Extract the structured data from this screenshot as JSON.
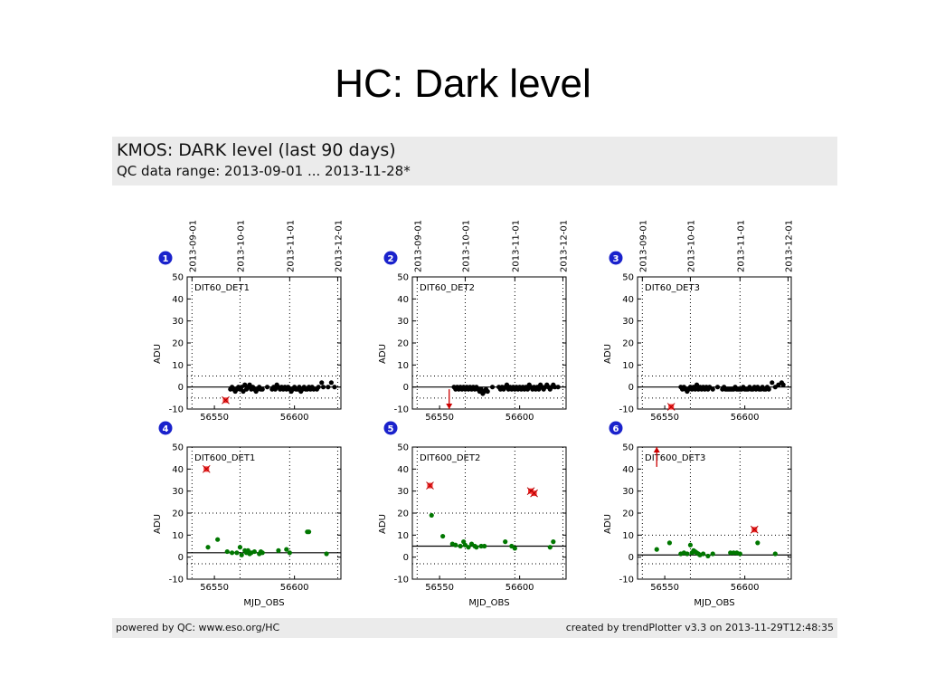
{
  "slide": {
    "title": "HC: Dark level"
  },
  "header": {
    "title": "KMOS: DARK level (last 90 days)",
    "range": "QC data range: 2013-09-01 ... 2013-11-28*"
  },
  "footer": {
    "left": "powered by QC: www.eso.org/HC",
    "right": "created by trendPlotter v3.3 on 2013-11-29T12:48:35"
  },
  "chart_data": [
    {
      "type": "scatter",
      "panel": "1",
      "label": "DIT60_DET1",
      "row": "top",
      "ylabel": "ADU",
      "xlabel": "",
      "xlim": [
        56533,
        56629
      ],
      "ylim": [
        -10,
        50
      ],
      "yticks": [
        -10,
        0,
        10,
        20,
        30,
        40,
        50
      ],
      "xticks": [
        56550,
        56600
      ],
      "date_ticks": [
        {
          "x": 56536,
          "label": "2013-09-01"
        },
        {
          "x": 56566,
          "label": "2013-10-01"
        },
        {
          "x": 56597,
          "label": "2013-11-01"
        },
        {
          "x": 56627,
          "label": "2013-12-01"
        }
      ],
      "ref_line": 0,
      "thresholds": [
        -5,
        5
      ],
      "color": "#000000",
      "points": [
        [
          56560,
          -1
        ],
        [
          56561,
          0
        ],
        [
          56562,
          -1
        ],
        [
          56563,
          -2
        ],
        [
          56564,
          -1
        ],
        [
          56565,
          0
        ],
        [
          56566,
          -1
        ],
        [
          56567,
          0
        ],
        [
          56568,
          -2
        ],
        [
          56569,
          1
        ],
        [
          56570,
          -1
        ],
        [
          56571,
          0
        ],
        [
          56572,
          1
        ],
        [
          56573,
          -1
        ],
        [
          56574,
          0
        ],
        [
          56575,
          -1
        ],
        [
          56576,
          -2
        ],
        [
          56577,
          -1
        ],
        [
          56578,
          0
        ],
        [
          56579,
          -1
        ],
        [
          56580,
          -1
        ],
        [
          56583,
          0
        ],
        [
          56586,
          -1
        ],
        [
          56587,
          0
        ],
        [
          56588,
          -1
        ],
        [
          56589,
          1
        ],
        [
          56590,
          0
        ],
        [
          56591,
          -1
        ],
        [
          56592,
          0
        ],
        [
          56593,
          -1
        ],
        [
          56594,
          0
        ],
        [
          56595,
          -1
        ],
        [
          56596,
          0
        ],
        [
          56597,
          -1
        ],
        [
          56598,
          -2
        ],
        [
          56599,
          -1
        ],
        [
          56600,
          0
        ],
        [
          56601,
          -1
        ],
        [
          56602,
          -1
        ],
        [
          56603,
          0
        ],
        [
          56604,
          -2
        ],
        [
          56605,
          -1
        ],
        [
          56606,
          0
        ],
        [
          56607,
          -1
        ],
        [
          56608,
          -1
        ],
        [
          56609,
          0
        ],
        [
          56610,
          -1
        ],
        [
          56611,
          0
        ],
        [
          56612,
          -1
        ],
        [
          56614,
          -1
        ],
        [
          56615,
          0
        ],
        [
          56617,
          2
        ],
        [
          56618,
          0
        ],
        [
          56621,
          0
        ],
        [
          56623,
          2
        ],
        [
          56625,
          0
        ]
      ],
      "outliers": [
        [
          56557,
          -6
        ]
      ],
      "arrows": []
    },
    {
      "type": "scatter",
      "panel": "2",
      "label": "DIT60_DET2",
      "row": "top",
      "ylabel": "ADU",
      "xlabel": "",
      "xlim": [
        56533,
        56629
      ],
      "ylim": [
        -10,
        50
      ],
      "yticks": [
        -10,
        0,
        10,
        20,
        30,
        40,
        50
      ],
      "xticks": [
        56550,
        56600
      ],
      "date_ticks": [
        {
          "x": 56536,
          "label": "2013-09-01"
        },
        {
          "x": 56566,
          "label": "2013-10-01"
        },
        {
          "x": 56597,
          "label": "2013-11-01"
        },
        {
          "x": 56627,
          "label": "2013-12-01"
        }
      ],
      "ref_line": 0,
      "thresholds": [
        -5,
        5
      ],
      "color": "#000000",
      "points": [
        [
          56559,
          0
        ],
        [
          56560,
          -1
        ],
        [
          56561,
          0
        ],
        [
          56562,
          -1
        ],
        [
          56563,
          0
        ],
        [
          56564,
          -1
        ],
        [
          56565,
          0
        ],
        [
          56566,
          -1
        ],
        [
          56567,
          0
        ],
        [
          56568,
          -1
        ],
        [
          56569,
          0
        ],
        [
          56570,
          -1
        ],
        [
          56571,
          0
        ],
        [
          56572,
          -1
        ],
        [
          56573,
          0
        ],
        [
          56574,
          -1
        ],
        [
          56575,
          -2
        ],
        [
          56576,
          -1
        ],
        [
          56577,
          -3
        ],
        [
          56578,
          -2
        ],
        [
          56579,
          -1
        ],
        [
          56580,
          -2
        ],
        [
          56583,
          0
        ],
        [
          56587,
          0
        ],
        [
          56588,
          -1
        ],
        [
          56589,
          0
        ],
        [
          56590,
          -1
        ],
        [
          56591,
          0
        ],
        [
          56592,
          1
        ],
        [
          56593,
          -1
        ],
        [
          56594,
          0
        ],
        [
          56595,
          -1
        ],
        [
          56596,
          0
        ],
        [
          56597,
          -1
        ],
        [
          56598,
          0
        ],
        [
          56599,
          -1
        ],
        [
          56600,
          0
        ],
        [
          56601,
          -1
        ],
        [
          56602,
          0
        ],
        [
          56603,
          -1
        ],
        [
          56604,
          0
        ],
        [
          56605,
          -1
        ],
        [
          56606,
          1
        ],
        [
          56607,
          0
        ],
        [
          56608,
          -1
        ],
        [
          56609,
          0
        ],
        [
          56610,
          -1
        ],
        [
          56611,
          0
        ],
        [
          56612,
          -1
        ],
        [
          56613,
          1
        ],
        [
          56614,
          0
        ],
        [
          56615,
          -1
        ],
        [
          56616,
          0
        ],
        [
          56617,
          1
        ],
        [
          56618,
          0
        ],
        [
          56619,
          -1
        ],
        [
          56620,
          0
        ],
        [
          56621,
          1
        ],
        [
          56622,
          0
        ],
        [
          56624,
          0
        ]
      ],
      "outliers": [],
      "arrows": [
        {
          "x": 56556,
          "from": -1,
          "to": -10,
          "dir": "down"
        }
      ]
    },
    {
      "type": "scatter",
      "panel": "3",
      "label": "DIT60_DET3",
      "row": "top",
      "ylabel": "ADU",
      "xlabel": "",
      "xlim": [
        56533,
        56629
      ],
      "ylim": [
        -10,
        50
      ],
      "yticks": [
        -10,
        0,
        10,
        20,
        30,
        40,
        50
      ],
      "xticks": [
        56550,
        56600
      ],
      "date_ticks": [
        {
          "x": 56536,
          "label": "2013-09-01"
        },
        {
          "x": 56566,
          "label": "2013-10-01"
        },
        {
          "x": 56597,
          "label": "2013-11-01"
        },
        {
          "x": 56627,
          "label": "2013-12-01"
        }
      ],
      "ref_line": 0,
      "thresholds": [
        -5,
        5
      ],
      "color": "#000000",
      "points": [
        [
          56560,
          0
        ],
        [
          56561,
          -1
        ],
        [
          56562,
          0
        ],
        [
          56563,
          -1
        ],
        [
          56564,
          -2
        ],
        [
          56565,
          -1
        ],
        [
          56566,
          0
        ],
        [
          56567,
          -1
        ],
        [
          56568,
          0
        ],
        [
          56569,
          -1
        ],
        [
          56570,
          1
        ],
        [
          56571,
          -1
        ],
        [
          56572,
          0
        ],
        [
          56573,
          -1
        ],
        [
          56574,
          0
        ],
        [
          56575,
          -1
        ],
        [
          56576,
          0
        ],
        [
          56577,
          -1
        ],
        [
          56578,
          0
        ],
        [
          56580,
          -1
        ],
        [
          56583,
          0
        ],
        [
          56586,
          -1
        ],
        [
          56587,
          0
        ],
        [
          56588,
          -1
        ],
        [
          56589,
          -1
        ],
        [
          56590,
          -1
        ],
        [
          56591,
          -1
        ],
        [
          56592,
          -1
        ],
        [
          56593,
          -1
        ],
        [
          56594,
          0
        ],
        [
          56595,
          -1
        ],
        [
          56596,
          -1
        ],
        [
          56597,
          -1
        ],
        [
          56598,
          -1
        ],
        [
          56599,
          0
        ],
        [
          56600,
          -1
        ],
        [
          56601,
          -1
        ],
        [
          56602,
          -1
        ],
        [
          56603,
          0
        ],
        [
          56604,
          -1
        ],
        [
          56605,
          -1
        ],
        [
          56606,
          0
        ],
        [
          56607,
          -1
        ],
        [
          56608,
          0
        ],
        [
          56609,
          -1
        ],
        [
          56610,
          -1
        ],
        [
          56611,
          0
        ],
        [
          56612,
          -1
        ],
        [
          56613,
          -1
        ],
        [
          56614,
          0
        ],
        [
          56615,
          -1
        ],
        [
          56617,
          2
        ],
        [
          56619,
          0
        ],
        [
          56621,
          1
        ],
        [
          56623,
          2
        ],
        [
          56624,
          1
        ]
      ],
      "outliers": [
        [
          56554,
          -9
        ]
      ],
      "arrows": []
    },
    {
      "type": "scatter",
      "panel": "4",
      "label": "DIT600_DET1",
      "row": "bottom",
      "ylabel": "ADU",
      "xlabel": "MJD_OBS",
      "xlim": [
        56533,
        56629
      ],
      "ylim": [
        -10,
        50
      ],
      "yticks": [
        -10,
        0,
        10,
        20,
        30,
        40,
        50
      ],
      "xticks": [
        56550,
        56600
      ],
      "date_ticks": [
        {
          "x": 56536,
          "label": "2013-09-01"
        },
        {
          "x": 56566,
          "label": "2013-10-01"
        },
        {
          "x": 56597,
          "label": "2013-11-01"
        },
        {
          "x": 56627,
          "label": "2013-12-01"
        }
      ],
      "ref_line": 2,
      "thresholds": [
        -3,
        20
      ],
      "color": "#007700",
      "points": [
        [
          56546,
          4.5
        ],
        [
          56552,
          8
        ],
        [
          56558,
          2.5
        ],
        [
          56561,
          2
        ],
        [
          56564,
          2
        ],
        [
          56566,
          4.5
        ],
        [
          56567,
          1
        ],
        [
          56569,
          3
        ],
        [
          56570,
          2
        ],
        [
          56571,
          3
        ],
        [
          56572,
          1.5
        ],
        [
          56573,
          2
        ],
        [
          56575,
          2.5
        ],
        [
          56578,
          1.5
        ],
        [
          56579,
          2.5
        ],
        [
          56580,
          2
        ],
        [
          56590,
          3
        ],
        [
          56595,
          3.5
        ],
        [
          56597,
          2
        ],
        [
          56608,
          11.5
        ],
        [
          56609,
          11.5
        ],
        [
          56620,
          1.5
        ]
      ],
      "outliers": [
        [
          56545,
          40
        ]
      ],
      "arrows": []
    },
    {
      "type": "scatter",
      "panel": "5",
      "label": "DIT600_DET2",
      "row": "bottom",
      "ylabel": "ADU",
      "xlabel": "MJD_OBS",
      "xlim": [
        56533,
        56629
      ],
      "ylim": [
        -10,
        50
      ],
      "yticks": [
        -10,
        0,
        10,
        20,
        30,
        40,
        50
      ],
      "xticks": [
        56550,
        56600
      ],
      "date_ticks": [
        {
          "x": 56536,
          "label": "2013-09-01"
        },
        {
          "x": 56566,
          "label": "2013-10-01"
        },
        {
          "x": 56597,
          "label": "2013-11-01"
        },
        {
          "x": 56627,
          "label": "2013-12-01"
        }
      ],
      "ref_line": 5,
      "thresholds": [
        -3,
        20
      ],
      "color": "#007700",
      "points": [
        [
          56545,
          19
        ],
        [
          56552,
          9.5
        ],
        [
          56558,
          6
        ],
        [
          56560,
          5.5
        ],
        [
          56563,
          5
        ],
        [
          56565,
          7
        ],
        [
          56566,
          5.5
        ],
        [
          56568,
          4.5
        ],
        [
          56570,
          6
        ],
        [
          56572,
          5
        ],
        [
          56573,
          4.5
        ],
        [
          56576,
          5
        ],
        [
          56578,
          5
        ],
        [
          56591,
          7
        ],
        [
          56595,
          5
        ],
        [
          56597,
          4
        ],
        [
          56619,
          4.5
        ],
        [
          56621,
          7
        ]
      ],
      "outliers": [
        [
          56544,
          32.5
        ],
        [
          56607,
          30
        ],
        [
          56609,
          29
        ]
      ],
      "arrows": []
    },
    {
      "type": "scatter",
      "panel": "6",
      "label": "DIT600_DET3",
      "row": "bottom",
      "ylabel": "ADU",
      "xlabel": "MJD_OBS",
      "xlim": [
        56533,
        56629
      ],
      "ylim": [
        -10,
        50
      ],
      "yticks": [
        -10,
        0,
        10,
        20,
        30,
        40,
        50
      ],
      "xticks": [
        56550,
        56600
      ],
      "date_ticks": [
        {
          "x": 56536,
          "label": "2013-09-01"
        },
        {
          "x": 56566,
          "label": "2013-10-01"
        },
        {
          "x": 56597,
          "label": "2013-11-01"
        },
        {
          "x": 56627,
          "label": "2013-12-01"
        }
      ],
      "ref_line": 1,
      "thresholds": [
        -3,
        10
      ],
      "color": "#007700",
      "points": [
        [
          56545,
          3.5
        ],
        [
          56553,
          6.5
        ],
        [
          56560,
          1.5
        ],
        [
          56562,
          2
        ],
        [
          56564,
          1.5
        ],
        [
          56566,
          5.5
        ],
        [
          56567,
          2
        ],
        [
          56568,
          3
        ],
        [
          56569,
          2.5
        ],
        [
          56570,
          2
        ],
        [
          56571,
          1.5
        ],
        [
          56572,
          1
        ],
        [
          56574,
          1.5
        ],
        [
          56577,
          0.5
        ],
        [
          56580,
          1.5
        ],
        [
          56591,
          2
        ],
        [
          56593,
          2
        ],
        [
          56595,
          2
        ],
        [
          56597,
          1.5
        ],
        [
          56608,
          6.5
        ],
        [
          56619,
          1.5
        ]
      ],
      "outliers": [
        [
          56606,
          12.5
        ]
      ],
      "arrows": [
        {
          "x": 56545,
          "from": 41,
          "to": 50,
          "dir": "up"
        }
      ]
    }
  ]
}
